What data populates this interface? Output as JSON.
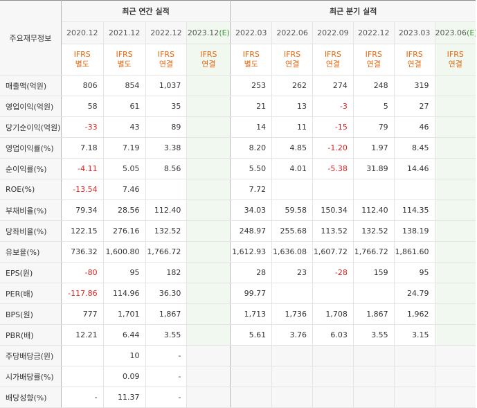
{
  "header": {
    "row_label": "주요재무정보",
    "annual_group": "최근 연간 실적",
    "quarter_group": "최근 분기 실적"
  },
  "periods": [
    {
      "label": "2020.12",
      "std1": "IFRS",
      "std2": "별도",
      "est": false
    },
    {
      "label": "2021.12",
      "std1": "IFRS",
      "std2": "별도",
      "est": false
    },
    {
      "label": "2022.12",
      "std1": "IFRS",
      "std2": "연결",
      "est": false
    },
    {
      "label": "2023.12",
      "suffix": "(E)",
      "std1": "IFRS",
      "std2": "연결",
      "est": true
    },
    {
      "label": "2022.03",
      "std1": "IFRS",
      "std2": "별도",
      "est": false
    },
    {
      "label": "2022.06",
      "std1": "IFRS",
      "std2": "연결",
      "est": false
    },
    {
      "label": "2022.09",
      "std1": "IFRS",
      "std2": "연결",
      "est": false
    },
    {
      "label": "2022.12",
      "std1": "IFRS",
      "std2": "연결",
      "est": false
    },
    {
      "label": "2023.03",
      "std1": "IFRS",
      "std2": "연결",
      "est": false
    },
    {
      "label": "2023.06",
      "suffix": "(E)",
      "std1": "IFRS",
      "std2": "연결",
      "est": true
    }
  ],
  "rows": [
    {
      "label": "매출액(억원)",
      "values": [
        "806",
        "854",
        "1,037",
        "",
        "253",
        "262",
        "274",
        "248",
        "319",
        ""
      ]
    },
    {
      "label": "영업이익(억원)",
      "values": [
        "58",
        "61",
        "35",
        "",
        "21",
        "13",
        "-3",
        "5",
        "27",
        ""
      ]
    },
    {
      "label": "당기순이익(억원)",
      "values": [
        "-33",
        "43",
        "89",
        "",
        "14",
        "11",
        "-15",
        "79",
        "46",
        ""
      ]
    },
    {
      "label": "영업이익률(%)",
      "values": [
        "7.18",
        "7.19",
        "3.38",
        "",
        "8.20",
        "4.85",
        "-1.20",
        "1.97",
        "8.45",
        ""
      ]
    },
    {
      "label": "순이익률(%)",
      "values": [
        "-4.11",
        "5.05",
        "8.56",
        "",
        "5.50",
        "4.01",
        "-5.38",
        "31.89",
        "14.46",
        ""
      ]
    },
    {
      "label": "ROE(%)",
      "values": [
        "-13.54",
        "7.46",
        "",
        "",
        "7.72",
        "",
        "",
        "",
        "",
        ""
      ]
    },
    {
      "label": "부채비율(%)",
      "values": [
        "79.34",
        "28.56",
        "112.40",
        "",
        "34.03",
        "59.58",
        "150.34",
        "112.40",
        "114.35",
        ""
      ]
    },
    {
      "label": "당좌비율(%)",
      "values": [
        "122.15",
        "276.16",
        "132.52",
        "",
        "248.97",
        "255.68",
        "113.52",
        "132.52",
        "138.19",
        ""
      ]
    },
    {
      "label": "유보율(%)",
      "values": [
        "736.32",
        "1,600.80",
        "1,766.72",
        "",
        "1,612.93",
        "1,636.08",
        "1,607.72",
        "1,766.72",
        "1,861.60",
        ""
      ]
    },
    {
      "label": "EPS(원)",
      "values": [
        "-80",
        "95",
        "182",
        "",
        "28",
        "23",
        "-28",
        "159",
        "95",
        ""
      ]
    },
    {
      "label": "PER(배)",
      "values": [
        "-117.86",
        "114.96",
        "36.30",
        "",
        "99.77",
        "",
        "",
        "",
        "24.79",
        ""
      ]
    },
    {
      "label": "BPS(원)",
      "values": [
        "777",
        "1,701",
        "1,867",
        "",
        "1,713",
        "1,736",
        "1,708",
        "1,867",
        "1,962",
        ""
      ]
    },
    {
      "label": "PBR(배)",
      "values": [
        "12.21",
        "6.44",
        "3.55",
        "",
        "5.61",
        "3.76",
        "6.03",
        "3.55",
        "3.15",
        ""
      ]
    },
    {
      "label": "주당배당금(원)",
      "values": [
        "",
        "10",
        "-",
        "",
        "",
        "",
        "",
        "",
        "",
        ""
      ],
      "annual_only": true
    },
    {
      "label": "시가배당률(%)",
      "values": [
        "",
        "0.09",
        "-",
        "",
        "",
        "",
        "",
        "",
        "",
        ""
      ],
      "annual_only": true
    },
    {
      "label": "배당성향(%)",
      "values": [
        "-",
        "11.37",
        "-",
        "",
        "",
        "",
        "",
        "",
        "",
        ""
      ],
      "annual_only": true
    }
  ],
  "colors": {
    "negative": "#e02020",
    "accent": "#e8680f",
    "estimate_bg": "#f1f8ef"
  }
}
